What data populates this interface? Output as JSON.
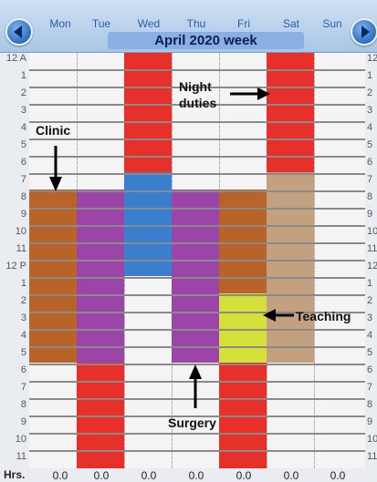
{
  "week_title": "April 2020 week",
  "days": [
    "Mon",
    "Tue",
    "Wed",
    "Thu",
    "Fri",
    "Sat",
    "Sun"
  ],
  "hours": [
    "12 A",
    "1",
    "2",
    "3",
    "4",
    "5",
    "6",
    "7",
    "8",
    "9",
    "10",
    "11",
    "12 P",
    "1",
    "2",
    "3",
    "4",
    "5",
    "6",
    "7",
    "8",
    "9",
    "10",
    "11"
  ],
  "footer": {
    "label": "Hrs.",
    "values": [
      "0.0",
      "0.0",
      "0.0",
      "0.0",
      "0.0",
      "0.0",
      "0.0"
    ]
  },
  "annotations": {
    "night_duties": "Night duties",
    "clinic": "Clinic",
    "teaching": "Teaching",
    "surgery": "Surgery"
  },
  "colors": {
    "night_duty": "#e8302a",
    "clinic": "#b86428",
    "surgery": "#9b45a8",
    "blue_event": "#3a7fce",
    "tan_event": "#c3a080",
    "teaching": "#d6e03a"
  },
  "icons": {
    "prev": "chevron-left-icon",
    "next": "chevron-right-icon"
  }
}
